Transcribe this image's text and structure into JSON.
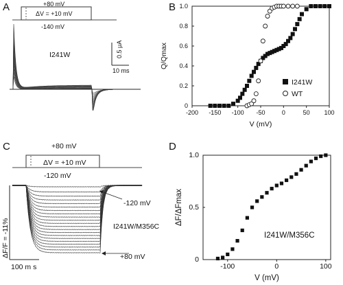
{
  "panels": {
    "A": {
      "label": "A",
      "protocol": {
        "top": "+80 mV",
        "step": "ΔV = +10 mV",
        "bottom": "-140 mV"
      },
      "construct": "I241W",
      "scale_y": "0.5 μA",
      "scale_x": "10 ms"
    },
    "B": {
      "label": "B"
    },
    "C": {
      "label": "C",
      "protocol": {
        "top": "+80 mV",
        "step": "ΔV = +10 mV",
        "bottom": "-120 mV"
      },
      "annot_upper": "-120 mV",
      "annot_lower": "+80 mV",
      "construct": "I241W/M356C",
      "scale_y": "ΔF/F = -11%",
      "scale_x": "100 m s"
    },
    "D": {
      "label": "D"
    }
  },
  "chart_data": [
    {
      "panel": "B",
      "type": "scatter",
      "xlabel": "V (mV)",
      "ylabel": "Q/Qmax",
      "xlim": [
        -200,
        100
      ],
      "ylim": [
        0,
        1.0
      ],
      "xticks": [
        -200,
        -150,
        -100,
        -50,
        0,
        50,
        100
      ],
      "yticks": [
        0,
        0.2,
        0.4,
        0.6,
        0.8,
        1.0
      ],
      "xtick_labels": [
        "-200",
        "-150",
        "-100",
        "-50",
        "0",
        "50",
        "100"
      ],
      "ytick_labels": [
        "0",
        "0.2",
        "0.4",
        "0.6",
        "0.8",
        "1.0"
      ],
      "legend": "right",
      "series": [
        {
          "name": "I241W",
          "marker": "filled-square",
          "x": [
            -160,
            -150,
            -140,
            -130,
            -120,
            -110,
            -100,
            -95,
            -90,
            -85,
            -80,
            -75,
            -70,
            -65,
            -60,
            -55,
            -50,
            -45,
            -40,
            -35,
            -30,
            -25,
            -20,
            -15,
            -10,
            -5,
            0,
            5,
            10,
            15,
            20,
            25,
            30,
            35,
            40,
            50,
            60,
            70,
            80,
            90,
            100
          ],
          "y": [
            0,
            0,
            0,
            0,
            0,
            0.02,
            0.05,
            0.08,
            0.12,
            0.16,
            0.2,
            0.25,
            0.3,
            0.34,
            0.38,
            0.42,
            0.45,
            0.48,
            0.5,
            0.52,
            0.53,
            0.54,
            0.55,
            0.56,
            0.57,
            0.58,
            0.6,
            0.62,
            0.65,
            0.68,
            0.72,
            0.77,
            0.82,
            0.87,
            0.92,
            0.97,
            1.0,
            1.0,
            1.0,
            1.0,
            1.0
          ]
        },
        {
          "name": "WT",
          "marker": "open-circle",
          "x": [
            -80,
            -75,
            -70,
            -65,
            -60,
            -55,
            -50,
            -45,
            -40,
            -35,
            -30,
            -25,
            -20,
            -15,
            -10,
            -5,
            0,
            10,
            20,
            30
          ],
          "y": [
            0,
            0.01,
            0.02,
            0.05,
            0.12,
            0.25,
            0.45,
            0.65,
            0.8,
            0.9,
            0.95,
            0.98,
            0.99,
            1.0,
            1.0,
            1.0,
            1.0,
            1.0,
            1.0,
            1.0
          ]
        }
      ]
    },
    {
      "panel": "D",
      "type": "scatter",
      "title": "I241W/M356C",
      "xlabel": "V (mV)",
      "ylabel": "ΔF/ΔFmax",
      "xlim": [
        -150,
        110
      ],
      "ylim": [
        0,
        1.0
      ],
      "xticks": [
        -100,
        0,
        100
      ],
      "yticks": [
        0,
        0.5,
        1.0
      ],
      "xtick_labels": [
        "-100",
        "0",
        "100"
      ],
      "ytick_labels": [
        "0",
        "0.5",
        "1.0"
      ],
      "series": [
        {
          "marker": "filled-square",
          "x": [
            -120,
            -110,
            -100,
            -90,
            -80,
            -70,
            -60,
            -50,
            -40,
            -30,
            -20,
            -10,
            0,
            10,
            20,
            30,
            40,
            50,
            60,
            70,
            80,
            90,
            100
          ],
          "y": [
            0.01,
            0.02,
            0.05,
            0.1,
            0.18,
            0.28,
            0.4,
            0.5,
            0.56,
            0.6,
            0.64,
            0.68,
            0.71,
            0.73,
            0.76,
            0.79,
            0.82,
            0.86,
            0.9,
            0.94,
            0.97,
            0.99,
            1.0
          ]
        }
      ]
    }
  ]
}
